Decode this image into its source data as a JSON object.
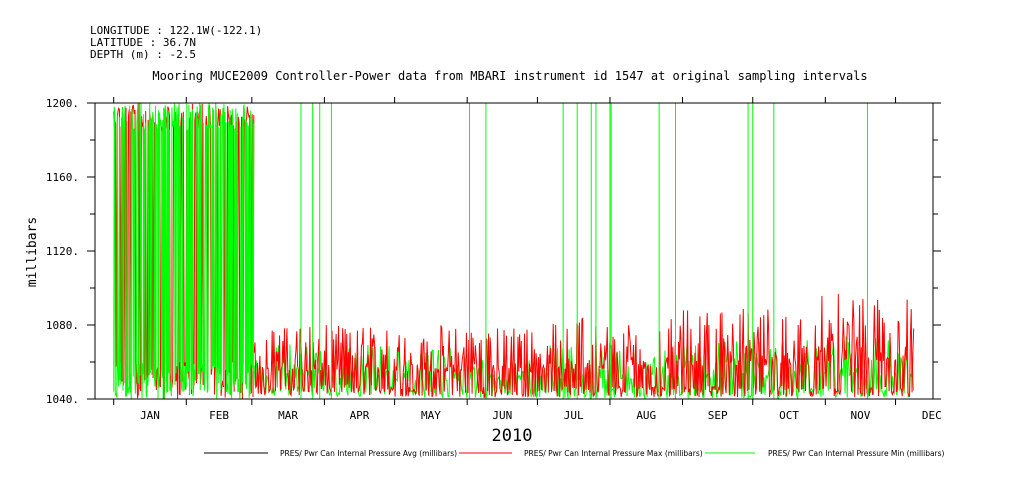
{
  "header": {
    "longitude": "LONGITUDE : 122.1W(-122.1)",
    "latitude": "LATITUDE : 36.7N",
    "depth": "DEPTH (m) : -2.5"
  },
  "chart_data": {
    "type": "line",
    "title": "Mooring MUCE2009 Controller-Power data from MBARI instrument id 1547 at original sampling intervals",
    "xlabel": "2010",
    "ylabel": "millibars",
    "x_tick_labels": [
      "JAN",
      "FEB",
      "MAR",
      "APR",
      "MAY",
      "JUN",
      "JUL",
      "AUG",
      "SEP",
      "OCT",
      "NOV",
      "DEC"
    ],
    "x_domain_days": [
      -8,
      350
    ],
    "ylim": [
      1040,
      1200
    ],
    "y_ticks": [
      1040,
      1080,
      1120,
      1160,
      1200
    ],
    "y_tick_labels": [
      "1040.",
      "1080.",
      "1120.",
      "1160.",
      "1200."
    ],
    "grid": false,
    "legend_position": "bottom",
    "series": [
      {
        "name": "PRES/ Pwr Can Internal Pressure Avg (millibars)",
        "color": "#000000",
        "values": []
      },
      {
        "name": "PRES/ Pwr Can Internal Pressure Max (millibars)",
        "color": "#ff0000",
        "segments": [
          {
            "day_start": 0,
            "day_end": 60,
            "low": 1040,
            "high": 1200
          },
          {
            "day_start": 60,
            "day_end": 120,
            "low": 1042,
            "high": 1080
          },
          {
            "day_start": 120,
            "day_end": 180,
            "low": 1041,
            "high": 1080
          },
          {
            "day_start": 180,
            "day_end": 240,
            "low": 1041,
            "high": 1085
          },
          {
            "day_start": 240,
            "day_end": 300,
            "low": 1041,
            "high": 1090
          },
          {
            "day_start": 300,
            "day_end": 342,
            "low": 1041,
            "high": 1097
          }
        ]
      },
      {
        "name": "PRES/ Pwr Can Internal Pressure Min (millibars)",
        "color": "#00ff00",
        "segments": [
          {
            "day_start": 0,
            "day_end": 60,
            "low": 1040,
            "high": 1200
          },
          {
            "day_start": 60,
            "day_end": 120,
            "low": 1041,
            "high": 1070
          },
          {
            "day_start": 120,
            "day_end": 180,
            "low": 1040,
            "high": 1068
          },
          {
            "day_start": 180,
            "day_end": 240,
            "low": 1040,
            "high": 1070
          },
          {
            "day_start": 240,
            "day_end": 300,
            "low": 1040,
            "high": 1072
          },
          {
            "day_start": 300,
            "day_end": 342,
            "low": 1040,
            "high": 1075
          }
        ],
        "spikes_to_1200_days": [
          80,
          85,
          88,
          93,
          152,
          159,
          192,
          198,
          204,
          206,
          212,
          212.5,
          233,
          240,
          271,
          273,
          282,
          322
        ]
      }
    ]
  }
}
